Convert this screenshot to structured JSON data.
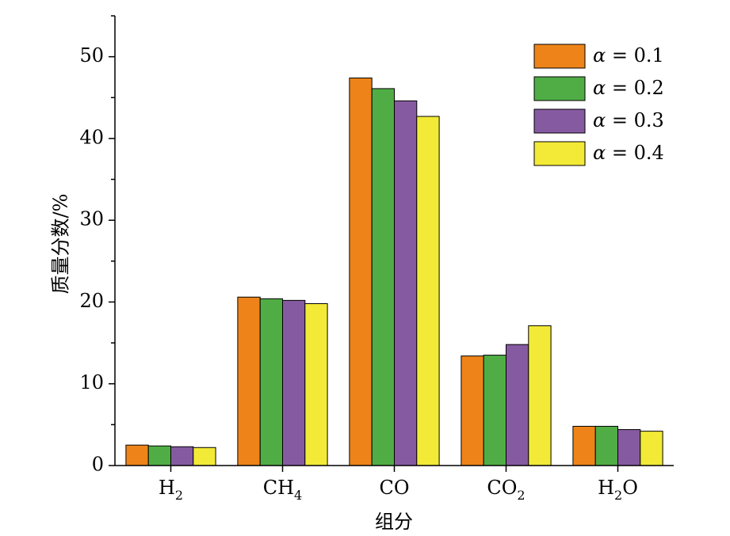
{
  "chart_data": {
    "type": "bar",
    "title": "",
    "xlabel": "组分",
    "ylabel": "质量分数/%",
    "ylim": [
      0,
      55
    ],
    "yticks": [
      0,
      10,
      20,
      30,
      40,
      50
    ],
    "grid": false,
    "legend_position": "top-right",
    "categories": [
      {
        "main": "H",
        "sub": "2",
        "tail": ""
      },
      {
        "main": "CH",
        "sub": "4",
        "tail": ""
      },
      {
        "main": "CO",
        "sub": "",
        "tail": ""
      },
      {
        "main": "CO",
        "sub": "2",
        "tail": ""
      },
      {
        "main": "H",
        "sub": "2",
        "tail": "O"
      }
    ],
    "series": [
      {
        "name": "α = 0.1",
        "symbol": "α",
        "label_rest": " = 0.1",
        "color": "#EE8419",
        "values": [
          2.5,
          20.6,
          47.4,
          13.4,
          4.8
        ]
      },
      {
        "name": "α = 0.2",
        "symbol": "α",
        "label_rest": " = 0.2",
        "color": "#50AD45",
        "values": [
          2.4,
          20.4,
          46.1,
          13.5,
          4.8
        ]
      },
      {
        "name": "α = 0.3",
        "symbol": "α",
        "label_rest": " = 0.3",
        "color": "#865AA1",
        "values": [
          2.3,
          20.2,
          44.6,
          14.8,
          4.4
        ]
      },
      {
        "name": "α = 0.4",
        "symbol": "α",
        "label_rest": " = 0.4",
        "color": "#F2EA37",
        "values": [
          2.2,
          19.8,
          42.7,
          17.1,
          4.2
        ]
      }
    ]
  }
}
